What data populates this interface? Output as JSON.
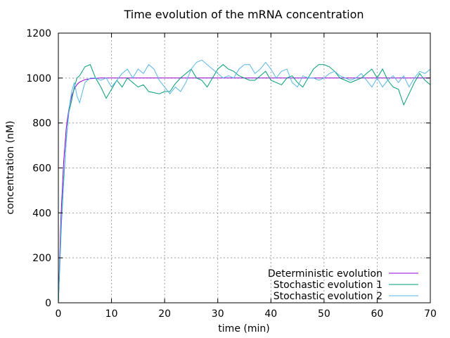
{
  "chart_data": {
    "type": "line",
    "title": "Time evolution of the mRNA concentration",
    "xlabel": "time (min)",
    "ylabel": "concentration (nM)",
    "xlim": [
      0,
      70
    ],
    "ylim": [
      0,
      1200
    ],
    "xticks": [
      0,
      10,
      20,
      30,
      40,
      50,
      60,
      70
    ],
    "yticks": [
      0,
      200,
      400,
      600,
      800,
      1000,
      1200
    ],
    "grid": true,
    "legend_position": "bottom-right",
    "series": [
      {
        "name": "Deterministic evolution",
        "color": "#9400d3",
        "points": [
          [
            0,
            0
          ],
          [
            0.5,
            390
          ],
          [
            1,
            630
          ],
          [
            1.5,
            780
          ],
          [
            2,
            865
          ],
          [
            2.5,
            920
          ],
          [
            3,
            952
          ],
          [
            3.5,
            971
          ],
          [
            4,
            982
          ],
          [
            5,
            993
          ],
          [
            6,
            997
          ],
          [
            8,
            1000
          ],
          [
            70,
            1000
          ]
        ]
      },
      {
        "name": "Stochastic evolution 1",
        "color": "#009e73",
        "points": [
          [
            0,
            0
          ],
          [
            0.3,
            180
          ],
          [
            0.6,
            360
          ],
          [
            1,
            540
          ],
          [
            1.5,
            730
          ],
          [
            2,
            850
          ],
          [
            2.5,
            900
          ],
          [
            3,
            960
          ],
          [
            3.5,
            1000
          ],
          [
            4,
            1010
          ],
          [
            5,
            1050
          ],
          [
            6,
            1060
          ],
          [
            7,
            1000
          ],
          [
            8,
            960
          ],
          [
            9,
            910
          ],
          [
            10,
            950
          ],
          [
            11,
            990
          ],
          [
            12,
            960
          ],
          [
            13,
            1000
          ],
          [
            14,
            980
          ],
          [
            15,
            960
          ],
          [
            16,
            970
          ],
          [
            17,
            940
          ],
          [
            18,
            935
          ],
          [
            19,
            930
          ],
          [
            20,
            940
          ],
          [
            21,
            940
          ],
          [
            22,
            975
          ],
          [
            23,
            1000
          ],
          [
            24,
            1020
          ],
          [
            25,
            1040
          ],
          [
            26,
            1000
          ],
          [
            27,
            990
          ],
          [
            28,
            960
          ],
          [
            29,
            1000
          ],
          [
            30,
            1040
          ],
          [
            31,
            1060
          ],
          [
            32,
            1040
          ],
          [
            33,
            1030
          ],
          [
            34,
            1010
          ],
          [
            35,
            1000
          ],
          [
            36,
            990
          ],
          [
            37,
            990
          ],
          [
            38,
            1010
          ],
          [
            39,
            1030
          ],
          [
            40,
            990
          ],
          [
            41,
            980
          ],
          [
            42,
            970
          ],
          [
            43,
            1000
          ],
          [
            44,
            1010
          ],
          [
            45,
            980
          ],
          [
            46,
            960
          ],
          [
            47,
            1000
          ],
          [
            48,
            1040
          ],
          [
            49,
            1060
          ],
          [
            50,
            1060
          ],
          [
            51,
            1050
          ],
          [
            52,
            1030
          ],
          [
            53,
            1000
          ],
          [
            54,
            990
          ],
          [
            55,
            980
          ],
          [
            56,
            990
          ],
          [
            57,
            1000
          ],
          [
            58,
            1020
          ],
          [
            59,
            1040
          ],
          [
            60,
            1000
          ],
          [
            61,
            1040
          ],
          [
            62,
            990
          ],
          [
            63,
            960
          ],
          [
            64,
            950
          ],
          [
            65,
            880
          ],
          [
            66,
            930
          ],
          [
            67,
            980
          ],
          [
            68,
            1020
          ],
          [
            69,
            990
          ],
          [
            70,
            970
          ]
        ]
      },
      {
        "name": "Stochastic evolution 2",
        "color": "#56b4e9",
        "points": [
          [
            0,
            0
          ],
          [
            0.3,
            200
          ],
          [
            0.6,
            380
          ],
          [
            1,
            560
          ],
          [
            1.5,
            720
          ],
          [
            2,
            860
          ],
          [
            2.5,
            940
          ],
          [
            3,
            980
          ],
          [
            3.5,
            920
          ],
          [
            4,
            890
          ],
          [
            5,
            980
          ],
          [
            6,
            1000
          ],
          [
            7,
            1000
          ],
          [
            8,
            990
          ],
          [
            9,
            1000
          ],
          [
            10,
            960
          ],
          [
            11,
            990
          ],
          [
            12,
            1020
          ],
          [
            13,
            1040
          ],
          [
            14,
            1000
          ],
          [
            15,
            1040
          ],
          [
            16,
            1020
          ],
          [
            17,
            1060
          ],
          [
            18,
            1040
          ],
          [
            19,
            990
          ],
          [
            20,
            960
          ],
          [
            21,
            930
          ],
          [
            22,
            960
          ],
          [
            23,
            940
          ],
          [
            24,
            980
          ],
          [
            25,
            1040
          ],
          [
            26,
            1070
          ],
          [
            27,
            1080
          ],
          [
            28,
            1060
          ],
          [
            29,
            1040
          ],
          [
            30,
            1020
          ],
          [
            31,
            1000
          ],
          [
            32,
            1010
          ],
          [
            33,
            1000
          ],
          [
            34,
            1040
          ],
          [
            35,
            1060
          ],
          [
            36,
            1060
          ],
          [
            37,
            1020
          ],
          [
            38,
            1040
          ],
          [
            39,
            1070
          ],
          [
            40,
            1040
          ],
          [
            41,
            1000
          ],
          [
            42,
            1030
          ],
          [
            43,
            1040
          ],
          [
            44,
            980
          ],
          [
            45,
            960
          ],
          [
            46,
            1010
          ],
          [
            47,
            1000
          ],
          [
            48,
            1000
          ],
          [
            49,
            990
          ],
          [
            50,
            1000
          ],
          [
            51,
            1020
          ],
          [
            52,
            1030
          ],
          [
            53,
            1010
          ],
          [
            54,
            1000
          ],
          [
            55,
            990
          ],
          [
            56,
            1000
          ],
          [
            57,
            1020
          ],
          [
            58,
            990
          ],
          [
            59,
            960
          ],
          [
            60,
            1000
          ],
          [
            61,
            960
          ],
          [
            62,
            990
          ],
          [
            63,
            1010
          ],
          [
            64,
            980
          ],
          [
            65,
            1010
          ],
          [
            66,
            960
          ],
          [
            67,
            1000
          ],
          [
            68,
            1030
          ],
          [
            69,
            1020
          ],
          [
            70,
            1040
          ]
        ]
      }
    ]
  }
}
